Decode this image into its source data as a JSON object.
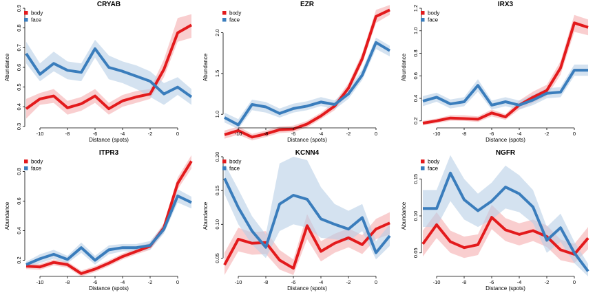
{
  "colors": {
    "body": "#e31a1c",
    "face": "#3a7dbc",
    "body_band": "#f4a6a8",
    "face_band": "#b8cfe6"
  },
  "chart_data": [
    {
      "type": "line",
      "title": "CRYAB",
      "xlabel": "Distance (spots)",
      "ylabel": "Abundance",
      "x": [
        -11,
        -10,
        -9,
        -8,
        -7,
        -6,
        -5,
        -4,
        -3,
        -2,
        -1,
        0,
        1
      ],
      "xticks": [
        -10,
        -8,
        -6,
        -4,
        -2,
        0
      ],
      "xtick_labels": [
        "-10",
        "-8",
        "-6",
        "-4",
        "-2",
        "0"
      ],
      "ylim": [
        0.3,
        0.9
      ],
      "yticks": [
        0.3,
        0.4,
        0.5,
        0.6,
        0.7,
        0.8,
        0.9
      ],
      "ytick_labels": [
        "0.3",
        "0.4",
        "0.5",
        "0.6",
        "0.7",
        "0.8",
        "0.9"
      ],
      "legend": "top-left",
      "series": [
        {
          "name": "body",
          "values": [
            0.39,
            0.44,
            0.455,
            0.395,
            0.415,
            0.455,
            0.39,
            0.43,
            0.45,
            0.465,
            0.59,
            0.775,
            0.815
          ],
          "lower": [
            0.34,
            0.41,
            0.42,
            0.36,
            0.38,
            0.42,
            0.36,
            0.4,
            0.42,
            0.44,
            0.55,
            0.73,
            0.75
          ],
          "upper": [
            0.44,
            0.47,
            0.49,
            0.43,
            0.45,
            0.49,
            0.42,
            0.46,
            0.48,
            0.49,
            0.64,
            0.85,
            0.87
          ]
        },
        {
          "name": "face",
          "values": [
            0.67,
            0.565,
            0.62,
            0.585,
            0.575,
            0.695,
            0.6,
            0.58,
            0.555,
            0.53,
            0.465,
            0.5,
            0.45
          ],
          "lower": [
            0.62,
            0.53,
            0.58,
            0.54,
            0.53,
            0.65,
            0.54,
            0.52,
            0.49,
            0.45,
            0.41,
            0.46,
            0.41
          ],
          "upper": [
            0.73,
            0.62,
            0.68,
            0.63,
            0.62,
            0.74,
            0.66,
            0.63,
            0.61,
            0.58,
            0.52,
            0.55,
            0.49
          ]
        }
      ]
    },
    {
      "type": "line",
      "title": "EZR",
      "xlabel": "Distance (spots)",
      "ylabel": "Abundance",
      "x": [
        -11,
        -10,
        -9,
        -8,
        -7,
        -6,
        -5,
        -4,
        -3,
        -2,
        -1,
        0,
        1
      ],
      "xticks": [
        -10,
        -8,
        -6,
        -4,
        -2,
        0
      ],
      "xtick_labels": [
        "-10",
        "-8",
        "-6",
        "-4",
        "-2",
        "0"
      ],
      "ylim": [
        0.85,
        2.3
      ],
      "yticks": [
        1.0,
        1.5,
        2.0
      ],
      "ytick_labels": [
        "1.0",
        "1.5",
        "2.0"
      ],
      "legend": "top-left",
      "series": [
        {
          "name": "body",
          "values": [
            0.75,
            0.8,
            0.72,
            0.76,
            0.81,
            0.82,
            0.88,
            0.98,
            1.1,
            1.32,
            1.68,
            2.2,
            2.28
          ],
          "lower": [
            0.7,
            0.75,
            0.68,
            0.72,
            0.77,
            0.78,
            0.84,
            0.94,
            1.05,
            1.26,
            1.62,
            2.12,
            2.22
          ],
          "upper": [
            0.8,
            0.85,
            0.76,
            0.8,
            0.85,
            0.86,
            0.92,
            1.02,
            1.15,
            1.38,
            1.75,
            2.28,
            2.34
          ]
        },
        {
          "name": "face",
          "values": [
            0.96,
            0.87,
            1.12,
            1.09,
            1.01,
            1.07,
            1.1,
            1.15,
            1.12,
            1.25,
            1.48,
            1.88,
            1.78
          ],
          "lower": [
            0.9,
            0.82,
            1.05,
            1.02,
            0.96,
            1.02,
            1.05,
            1.1,
            1.06,
            1.19,
            1.42,
            1.8,
            1.71
          ],
          "upper": [
            1.02,
            0.94,
            1.18,
            1.15,
            1.07,
            1.13,
            1.16,
            1.21,
            1.17,
            1.31,
            1.55,
            1.94,
            1.84
          ]
        }
      ]
    },
    {
      "type": "line",
      "title": "IRX3",
      "xlabel": "Distance (spots)",
      "ylabel": "Abundance",
      "x": [
        -11,
        -10,
        -9,
        -8,
        -7,
        -6,
        -5,
        -4,
        -3,
        -2,
        -1,
        0,
        1
      ],
      "xticks": [
        -10,
        -8,
        -6,
        -4,
        -2,
        0
      ],
      "xtick_labels": [
        "-10",
        "-8",
        "-6",
        "-4",
        "-2",
        "0"
      ],
      "ylim": [
        0.15,
        1.2
      ],
      "yticks": [
        0.2,
        0.4,
        0.6,
        0.8,
        1.0,
        1.2
      ],
      "ytick_labels": [
        "0.2",
        "0.4",
        "0.6",
        "0.8",
        "1.0",
        "1.2"
      ],
      "legend": "top-left",
      "series": [
        {
          "name": "body",
          "values": [
            0.18,
            0.2,
            0.225,
            0.22,
            0.215,
            0.27,
            0.235,
            0.34,
            0.41,
            0.47,
            0.67,
            1.07,
            1.03
          ],
          "lower": [
            0.16,
            0.18,
            0.2,
            0.2,
            0.19,
            0.24,
            0.21,
            0.3,
            0.36,
            0.42,
            0.61,
            0.99,
            0.96
          ],
          "upper": [
            0.2,
            0.22,
            0.25,
            0.25,
            0.24,
            0.3,
            0.26,
            0.38,
            0.46,
            0.52,
            0.73,
            1.14,
            1.1
          ]
        },
        {
          "name": "face",
          "values": [
            0.375,
            0.41,
            0.35,
            0.37,
            0.515,
            0.34,
            0.37,
            0.34,
            0.385,
            0.445,
            0.455,
            0.65,
            0.65
          ],
          "lower": [
            0.33,
            0.37,
            0.31,
            0.33,
            0.46,
            0.3,
            0.33,
            0.3,
            0.34,
            0.4,
            0.41,
            0.6,
            0.6
          ],
          "upper": [
            0.42,
            0.45,
            0.39,
            0.41,
            0.57,
            0.38,
            0.41,
            0.38,
            0.43,
            0.49,
            0.5,
            0.7,
            0.7
          ]
        }
      ]
    },
    {
      "type": "line",
      "title": "ITPR3",
      "xlabel": "Distance (spots)",
      "ylabel": "Abundance",
      "x": [
        -11,
        -10,
        -9,
        -8,
        -7,
        -6,
        -5,
        -4,
        -3,
        -2,
        -1,
        0,
        1
      ],
      "xticks": [
        -10,
        -8,
        -6,
        -4,
        -2,
        0
      ],
      "xtick_labels": [
        "-10",
        "-8",
        "-6",
        "-4",
        "-2",
        "0"
      ],
      "ylim": [
        0.1,
        0.9
      ],
      "yticks": [
        0.2,
        0.4,
        0.6,
        0.8
      ],
      "ytick_labels": [
        "0.2",
        "0.4",
        "0.6",
        "0.8"
      ],
      "legend": "top-left",
      "series": [
        {
          "name": "body",
          "values": [
            0.16,
            0.155,
            0.185,
            0.17,
            0.11,
            0.14,
            0.18,
            0.225,
            0.26,
            0.295,
            0.42,
            0.72,
            0.87
          ],
          "lower": [
            0.14,
            0.135,
            0.165,
            0.15,
            0.09,
            0.12,
            0.16,
            0.205,
            0.24,
            0.27,
            0.39,
            0.68,
            0.82
          ],
          "upper": [
            0.18,
            0.175,
            0.205,
            0.19,
            0.13,
            0.16,
            0.2,
            0.245,
            0.28,
            0.32,
            0.45,
            0.76,
            0.91
          ]
        },
        {
          "name": "face",
          "values": [
            0.17,
            0.21,
            0.24,
            0.205,
            0.285,
            0.2,
            0.27,
            0.285,
            0.285,
            0.3,
            0.41,
            0.635,
            0.59
          ],
          "lower": [
            0.15,
            0.18,
            0.21,
            0.18,
            0.25,
            0.17,
            0.24,
            0.26,
            0.26,
            0.27,
            0.38,
            0.59,
            0.55
          ],
          "upper": [
            0.19,
            0.24,
            0.27,
            0.23,
            0.32,
            0.23,
            0.3,
            0.31,
            0.31,
            0.33,
            0.44,
            0.68,
            0.63
          ]
        }
      ]
    },
    {
      "type": "line",
      "title": "KCNN4",
      "xlabel": "Distance (spots)",
      "ylabel": "Abundance",
      "x": [
        -11,
        -10,
        -9,
        -8,
        -7,
        -6,
        -5,
        -4,
        -3,
        -2,
        -1,
        0,
        1
      ],
      "xticks": [
        -10,
        -8,
        -6,
        -4,
        -2,
        0
      ],
      "xtick_labels": [
        "-10",
        "-8",
        "-6",
        "-4",
        "-2",
        "0"
      ],
      "ylim": [
        0.025,
        0.2
      ],
      "yticks": [
        0.05,
        0.1,
        0.15,
        0.2
      ],
      "ytick_labels": [
        "0.05",
        "0.10",
        "0.15",
        "0.20"
      ],
      "legend": "top-left",
      "series": [
        {
          "name": "body",
          "values": [
            0.04,
            0.078,
            0.072,
            0.073,
            0.047,
            0.035,
            0.098,
            0.06,
            0.072,
            0.08,
            0.07,
            0.093,
            0.102
          ],
          "lower": [
            0.025,
            0.06,
            0.055,
            0.056,
            0.033,
            0.025,
            0.078,
            0.045,
            0.058,
            0.066,
            0.056,
            0.078,
            0.085
          ],
          "upper": [
            0.058,
            0.095,
            0.088,
            0.09,
            0.062,
            0.048,
            0.115,
            0.075,
            0.086,
            0.094,
            0.084,
            0.108,
            0.118
          ]
        },
        {
          "name": "face",
          "values": [
            0.168,
            0.125,
            0.09,
            0.066,
            0.13,
            0.143,
            0.137,
            0.108,
            0.1,
            0.093,
            0.11,
            0.058,
            0.083
          ],
          "lower": [
            0.145,
            0.1,
            0.07,
            0.05,
            0.09,
            0.1,
            0.095,
            0.08,
            0.078,
            0.075,
            0.09,
            0.048,
            0.068
          ],
          "upper": [
            0.19,
            0.152,
            0.112,
            0.085,
            0.19,
            0.2,
            0.195,
            0.155,
            0.13,
            0.12,
            0.13,
            0.075,
            0.1
          ]
        }
      ]
    },
    {
      "type": "line",
      "title": "NGFR",
      "xlabel": "Distance (spots)",
      "ylabel": "Abundance",
      "x": [
        -11,
        -10,
        -9,
        -8,
        -7,
        -6,
        -5,
        -4,
        -3,
        -2,
        -1,
        0,
        1
      ],
      "xticks": [
        -10,
        -8,
        -6,
        -4,
        -2,
        0
      ],
      "xtick_labels": [
        "-10",
        "-8",
        "-6",
        "-4",
        "-2",
        "0"
      ],
      "ylim": [
        0.02,
        0.18
      ],
      "yticks": [
        0.05,
        0.1,
        0.15
      ],
      "ytick_labels": [
        "0.05",
        "0.10",
        "0.15"
      ],
      "legend": "top-left",
      "series": [
        {
          "name": "body",
          "values": [
            0.062,
            0.088,
            0.065,
            0.057,
            0.061,
            0.098,
            0.081,
            0.075,
            0.08,
            0.072,
            0.054,
            0.048,
            0.07
          ],
          "lower": [
            0.045,
            0.07,
            0.05,
            0.043,
            0.047,
            0.082,
            0.066,
            0.06,
            0.066,
            0.058,
            0.04,
            0.036,
            0.055
          ],
          "upper": [
            0.08,
            0.105,
            0.08,
            0.072,
            0.075,
            0.115,
            0.097,
            0.09,
            0.095,
            0.087,
            0.068,
            0.062,
            0.085
          ]
        },
        {
          "name": "face",
          "values": [
            0.11,
            0.11,
            0.158,
            0.122,
            0.107,
            0.12,
            0.139,
            0.13,
            0.112,
            0.067,
            0.084,
            0.05,
            0.025
          ],
          "lower": [
            0.085,
            0.085,
            0.12,
            0.095,
            0.085,
            0.095,
            0.11,
            0.105,
            0.09,
            0.05,
            0.065,
            0.036,
            0.018
          ],
          "upper": [
            0.135,
            0.135,
            0.182,
            0.15,
            0.13,
            0.145,
            0.168,
            0.155,
            0.135,
            0.085,
            0.103,
            0.065,
            0.035
          ]
        }
      ]
    }
  ]
}
